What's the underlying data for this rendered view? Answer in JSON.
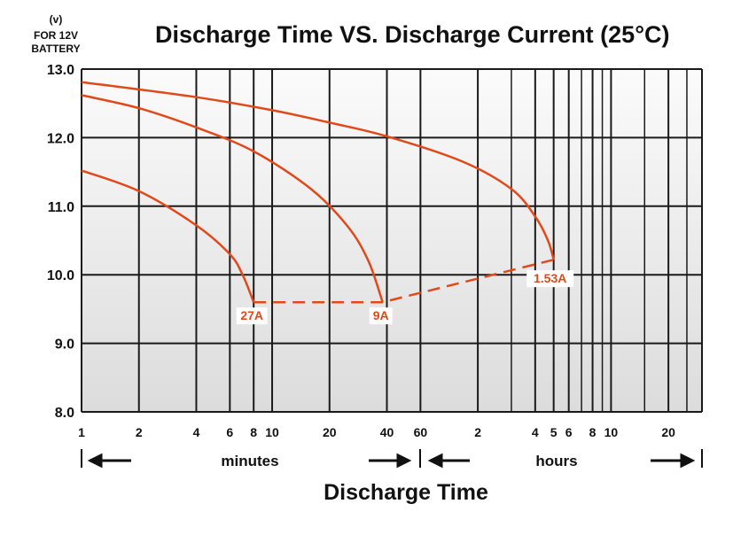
{
  "title": "Discharge Time VS. Discharge Current (25°C)",
  "y_unit_lines": [
    "(v)",
    "FOR 12V",
    "BATTERY"
  ],
  "colors": {
    "curve": "#e04a1a",
    "plot_bg_top": "#fbfbfb",
    "plot_bg_bottom": "#dcdcdc",
    "grid": "#1a1a1a"
  },
  "chart_data": {
    "type": "line",
    "title": "Discharge Time VS. Discharge Current (25°C)",
    "xlabel": "Discharge Time",
    "ylabel": "(v) FOR 12V BATTERY",
    "x_scale": "log",
    "x_unit": "minutes",
    "xlim": [
      1,
      1800
    ],
    "ylim": [
      8.0,
      13.0
    ],
    "grid": true,
    "y_ticks": [
      "13.0",
      "12.0",
      "11.0",
      "10.0",
      "9.0",
      "8.0"
    ],
    "x_ticks": [
      {
        "label": "1",
        "minutes": 1
      },
      {
        "label": "2",
        "minutes": 2
      },
      {
        "label": "4",
        "minutes": 4
      },
      {
        "label": "6",
        "minutes": 6
      },
      {
        "label": "8",
        "minutes": 8
      },
      {
        "label": "10",
        "minutes": 10
      },
      {
        "label": "20",
        "minutes": 20
      },
      {
        "label": "40",
        "minutes": 40
      },
      {
        "label": "60",
        "minutes": 60
      },
      {
        "label": "2",
        "minutes": 120
      },
      {
        "label": "4",
        "minutes": 240
      },
      {
        "label": "5",
        "minutes": 300
      },
      {
        "label": "6",
        "minutes": 360
      },
      {
        "label": "8",
        "minutes": 480
      },
      {
        "label": "10",
        "minutes": 600
      },
      {
        "label": "20",
        "minutes": 1200
      }
    ],
    "span_labels": [
      "minutes",
      "hours"
    ],
    "series": [
      {
        "name": "27A",
        "points": [
          [
            1,
            11.52
          ],
          [
            2,
            11.22
          ],
          [
            4,
            10.72
          ],
          [
            6,
            10.3
          ],
          [
            7,
            10.0
          ],
          [
            8,
            9.6
          ]
        ]
      },
      {
        "name": "9A",
        "points": [
          [
            1,
            12.62
          ],
          [
            2,
            12.43
          ],
          [
            4,
            12.15
          ],
          [
            8,
            11.8
          ],
          [
            16,
            11.25
          ],
          [
            25,
            10.7
          ],
          [
            32,
            10.2
          ],
          [
            38,
            9.6
          ]
        ]
      },
      {
        "name": "1.53A",
        "points": [
          [
            1,
            12.81
          ],
          [
            4,
            12.59
          ],
          [
            10,
            12.4
          ],
          [
            20,
            12.22
          ],
          [
            40,
            12.02
          ],
          [
            100,
            11.65
          ],
          [
            180,
            11.25
          ],
          [
            240,
            10.85
          ],
          [
            280,
            10.5
          ],
          [
            300,
            10.22
          ]
        ]
      }
    ],
    "cutoff_line": {
      "style": "dashed",
      "points": [
        [
          8,
          9.6
        ],
        [
          38,
          9.6
        ],
        [
          300,
          10.22
        ]
      ]
    }
  }
}
